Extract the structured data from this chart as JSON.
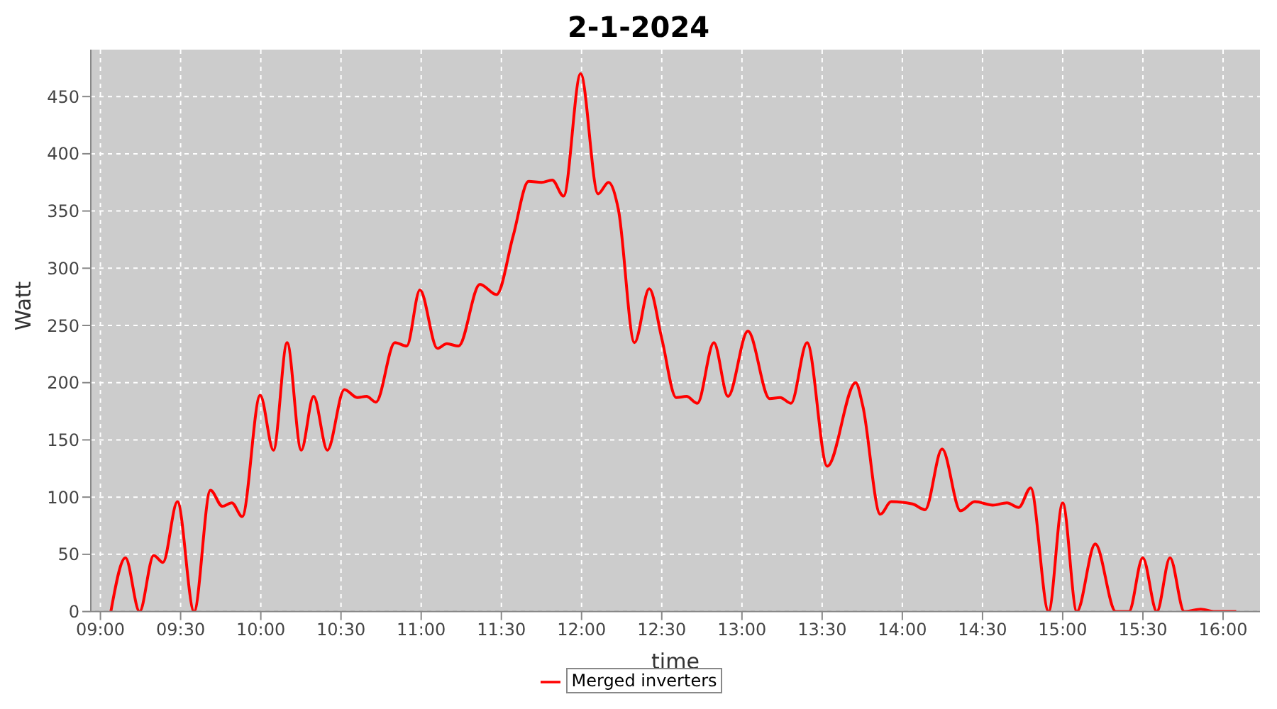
{
  "chart_data": {
    "type": "line",
    "title": "2-1-2024",
    "xlabel": "time",
    "ylabel": "Watt",
    "xlim": [
      8.94,
      16.23
    ],
    "ylim": [
      0,
      491
    ],
    "xticks": [
      {
        "value": 9,
        "label": "09:00"
      },
      {
        "value": 9.5,
        "label": "09:30"
      },
      {
        "value": 10,
        "label": "10:00"
      },
      {
        "value": 10.5,
        "label": "10:30"
      },
      {
        "value": 11,
        "label": "11:00"
      },
      {
        "value": 11.5,
        "label": "11:30"
      },
      {
        "value": 12,
        "label": "12:00"
      },
      {
        "value": 12.5,
        "label": "12:30"
      },
      {
        "value": 13,
        "label": "13:00"
      },
      {
        "value": 13.5,
        "label": "13:30"
      },
      {
        "value": 14,
        "label": "14:00"
      },
      {
        "value": 14.5,
        "label": "14:30"
      },
      {
        "value": 15,
        "label": "15:00"
      },
      {
        "value": 15.5,
        "label": "15:30"
      },
      {
        "value": 16,
        "label": "16:00"
      }
    ],
    "yticks": [
      0,
      50,
      100,
      150,
      200,
      250,
      300,
      350,
      400,
      450
    ],
    "grid": true,
    "legend": "bottom",
    "marker": "none",
    "line_style": "solid",
    "x": [
      9.065,
      9.156,
      9.244,
      9.332,
      9.39,
      9.48,
      9.584,
      9.686,
      9.76,
      9.819,
      9.884,
      9.996,
      10.079,
      10.164,
      10.252,
      10.329,
      10.415,
      10.521,
      10.601,
      10.659,
      10.718,
      10.836,
      10.91,
      10.992,
      11.101,
      11.16,
      11.233,
      11.366,
      11.47,
      11.573,
      11.67,
      11.75,
      11.817,
      11.888,
      11.994,
      12.103,
      12.168,
      12.23,
      12.33,
      12.422,
      12.501,
      12.59,
      12.654,
      12.722,
      12.825,
      12.913,
      13.037,
      13.173,
      13.238,
      13.306,
      13.406,
      13.532,
      13.709,
      13.753,
      13.863,
      13.93,
      14.063,
      14.142,
      14.248,
      14.363,
      14.452,
      14.564,
      14.652,
      14.726,
      14.8,
      14.912,
      15.0,
      15.088,
      15.203,
      15.331,
      15.413,
      15.499,
      15.587,
      15.669,
      15.758,
      15.861,
      15.949,
      16.082
    ],
    "series": [
      {
        "name": "Merged inverters",
        "color": "#ff0000",
        "values": [
          0,
          47,
          0,
          49,
          43,
          96,
          0,
          106,
          92,
          95,
          83,
          189,
          141,
          235,
          141,
          188,
          141,
          194,
          187,
          188,
          183,
          235,
          232,
          281,
          230,
          234,
          232,
          286,
          277,
          328,
          376,
          375,
          377,
          363,
          470,
          365,
          375,
          351,
          235,
          282,
          238,
          187,
          188,
          182,
          235,
          188,
          245,
          186,
          187,
          182,
          235,
          127,
          200,
          180,
          85,
          96,
          94,
          89,
          142,
          88,
          96,
          93,
          95,
          91,
          108,
          0,
          95,
          0,
          59,
          0,
          0,
          47,
          0,
          47,
          0,
          2,
          0,
          0
        ]
      }
    ]
  }
}
